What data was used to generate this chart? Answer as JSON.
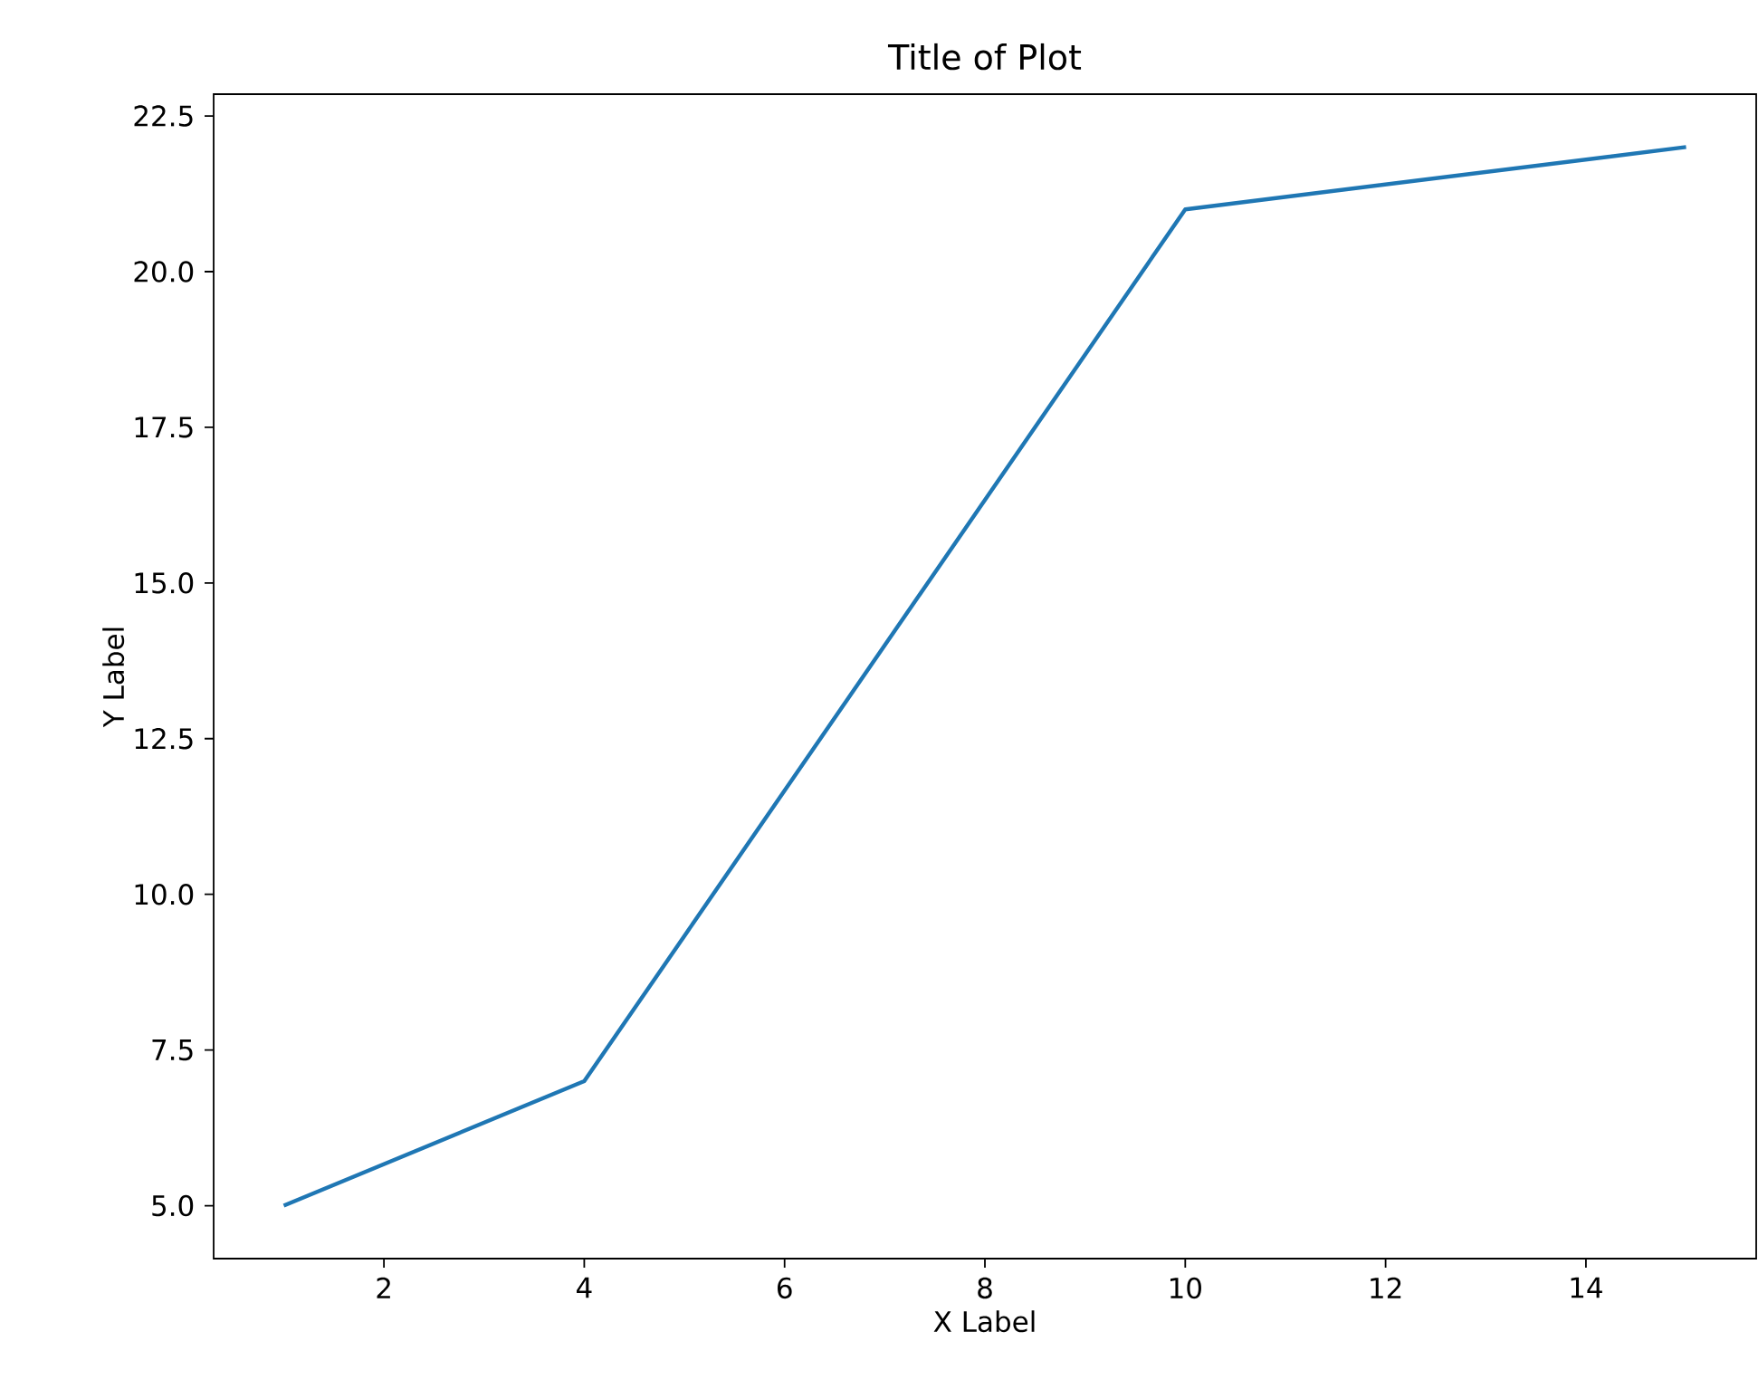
{
  "chart_data": {
    "type": "line",
    "title": "Title of Plot",
    "xlabel": "X Label",
    "ylabel": "Y Label",
    "x": [
      1,
      4,
      10,
      15
    ],
    "series": [
      {
        "color": "#1f77b4",
        "values": [
          5,
          7,
          21,
          22
        ]
      }
    ],
    "xlim": [
      0.3,
      15.7
    ],
    "ylim": [
      4.15,
      22.85
    ],
    "xticks": [
      2,
      4,
      6,
      8,
      10,
      12,
      14
    ],
    "yticks": [
      {
        "value": 5,
        "label": "5.0"
      },
      {
        "value": 7.5,
        "label": "7.5"
      },
      {
        "value": 10,
        "label": "10.0"
      },
      {
        "value": 12.5,
        "label": "12.5"
      },
      {
        "value": 15,
        "label": "15.0"
      },
      {
        "value": 17.5,
        "label": "17.5"
      },
      {
        "value": 20,
        "label": "20.0"
      },
      {
        "value": 22.5,
        "label": "22.5"
      }
    ],
    "grid": false,
    "marker": "none",
    "line_style": "solid"
  }
}
